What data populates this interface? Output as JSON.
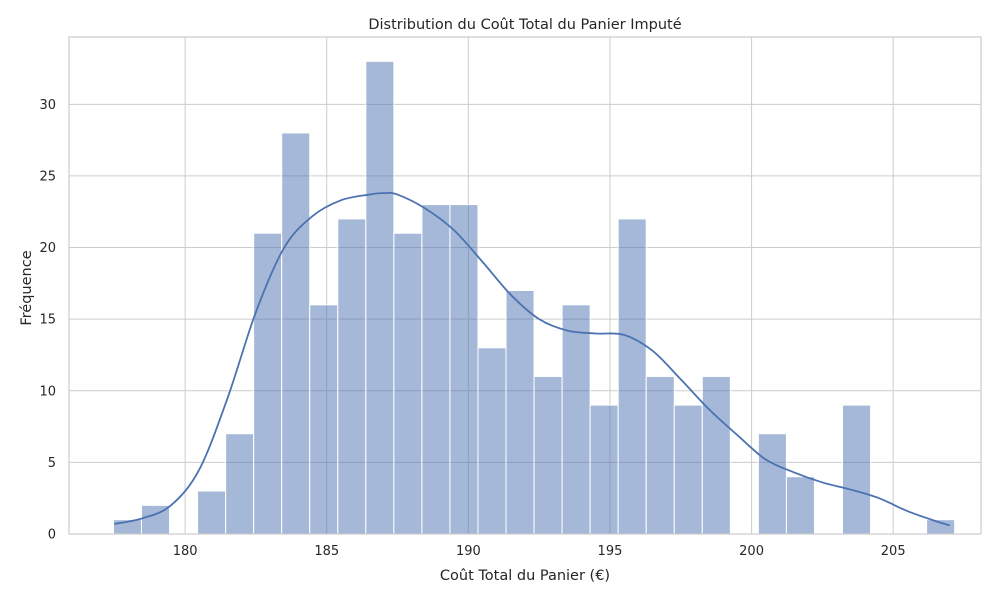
{
  "chart_data": {
    "type": "bar",
    "title": "Distribution du Coût Total du Panier Imputé",
    "xlabel": "Coût Total du Panier (€)",
    "ylabel": "Fréquence",
    "xlim": [
      175.9,
      208.1
    ],
    "ylim": [
      0,
      34.7
    ],
    "x_ticks": [
      180,
      185,
      190,
      195,
      200,
      205
    ],
    "y_ticks": [
      0,
      5,
      10,
      15,
      20,
      25,
      30
    ],
    "grid": true,
    "bin_edges": [
      177.47,
      178.46,
      179.45,
      180.44,
      181.43,
      182.42,
      183.41,
      184.4,
      185.39,
      186.38,
      187.37,
      188.36,
      189.35,
      190.34,
      191.33,
      192.32,
      193.31,
      194.3,
      195.29,
      196.28,
      197.27,
      198.26,
      199.25,
      200.24,
      201.23,
      202.22,
      203.21,
      204.2,
      205.19,
      206.18,
      207.17
    ],
    "counts": [
      1,
      2,
      0,
      3,
      7,
      21,
      28,
      16,
      22,
      33,
      21,
      23,
      23,
      13,
      17,
      11,
      16,
      9,
      22,
      11,
      9,
      11,
      0,
      7,
      4,
      0,
      9,
      0,
      0,
      1
    ],
    "kde": {
      "x": [
        177.5,
        178.5,
        179.5,
        180.5,
        181.5,
        182.5,
        183.5,
        184.5,
        185.5,
        186.5,
        187.0,
        187.5,
        188.5,
        189.5,
        190.5,
        191.5,
        192.5,
        193.5,
        194.5,
        195.5,
        196.5,
        197.5,
        198.5,
        199.5,
        200.5,
        201.5,
        202.5,
        203.5,
        204.5,
        205.5,
        206.5,
        207.0
      ],
      "y": [
        0.7,
        1.1,
        2.0,
        4.5,
        9.5,
        15.5,
        20.0,
        22.2,
        23.3,
        23.7,
        23.8,
        23.7,
        22.7,
        21.2,
        19.0,
        16.7,
        15.0,
        14.2,
        14.0,
        13.9,
        12.8,
        10.8,
        8.7,
        6.9,
        5.2,
        4.3,
        3.6,
        3.1,
        2.5,
        1.6,
        0.9,
        0.6
      ]
    },
    "colors": {
      "bar": "#4c72b0",
      "line": "#4c72b0",
      "grid": "#cccccc",
      "text": "#262626"
    }
  }
}
